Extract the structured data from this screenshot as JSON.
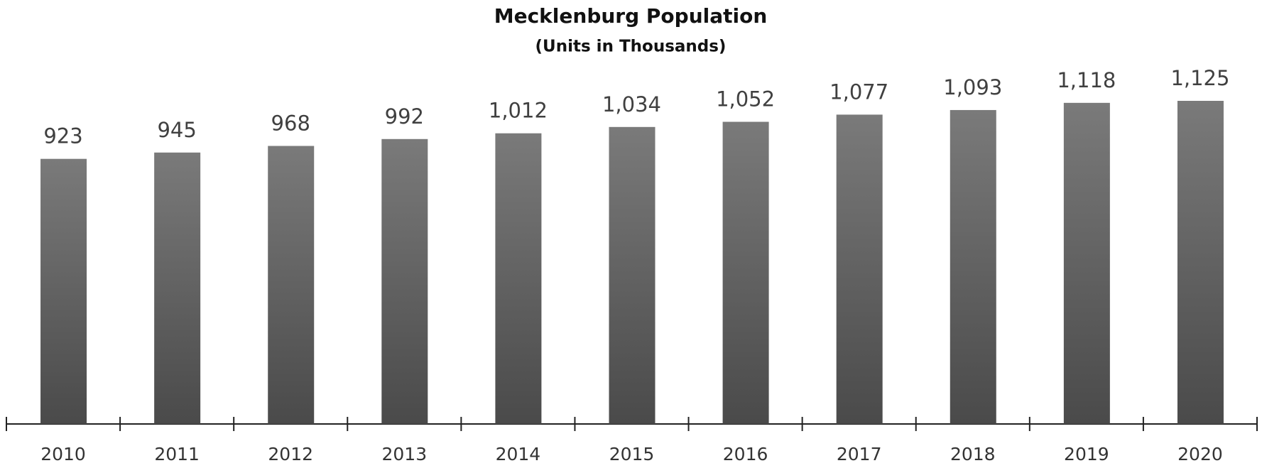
{
  "chart_data": {
    "type": "bar",
    "title": "Mecklenburg Population",
    "subtitle": "(Units in Thousands)",
    "categories": [
      "2010",
      "2011",
      "2012",
      "2013",
      "2014",
      "2015",
      "2016",
      "2017",
      "2018",
      "2019",
      "2020"
    ],
    "values": [
      923,
      945,
      968,
      992,
      1012,
      1034,
      1052,
      1077,
      1093,
      1118,
      1125
    ],
    "value_labels": [
      "923",
      "945",
      "968",
      "992",
      "1,012",
      "1,034",
      "1,052",
      "1,077",
      "1,093",
      "1,118",
      "1,125"
    ],
    "color": "#4a4a4a"
  }
}
